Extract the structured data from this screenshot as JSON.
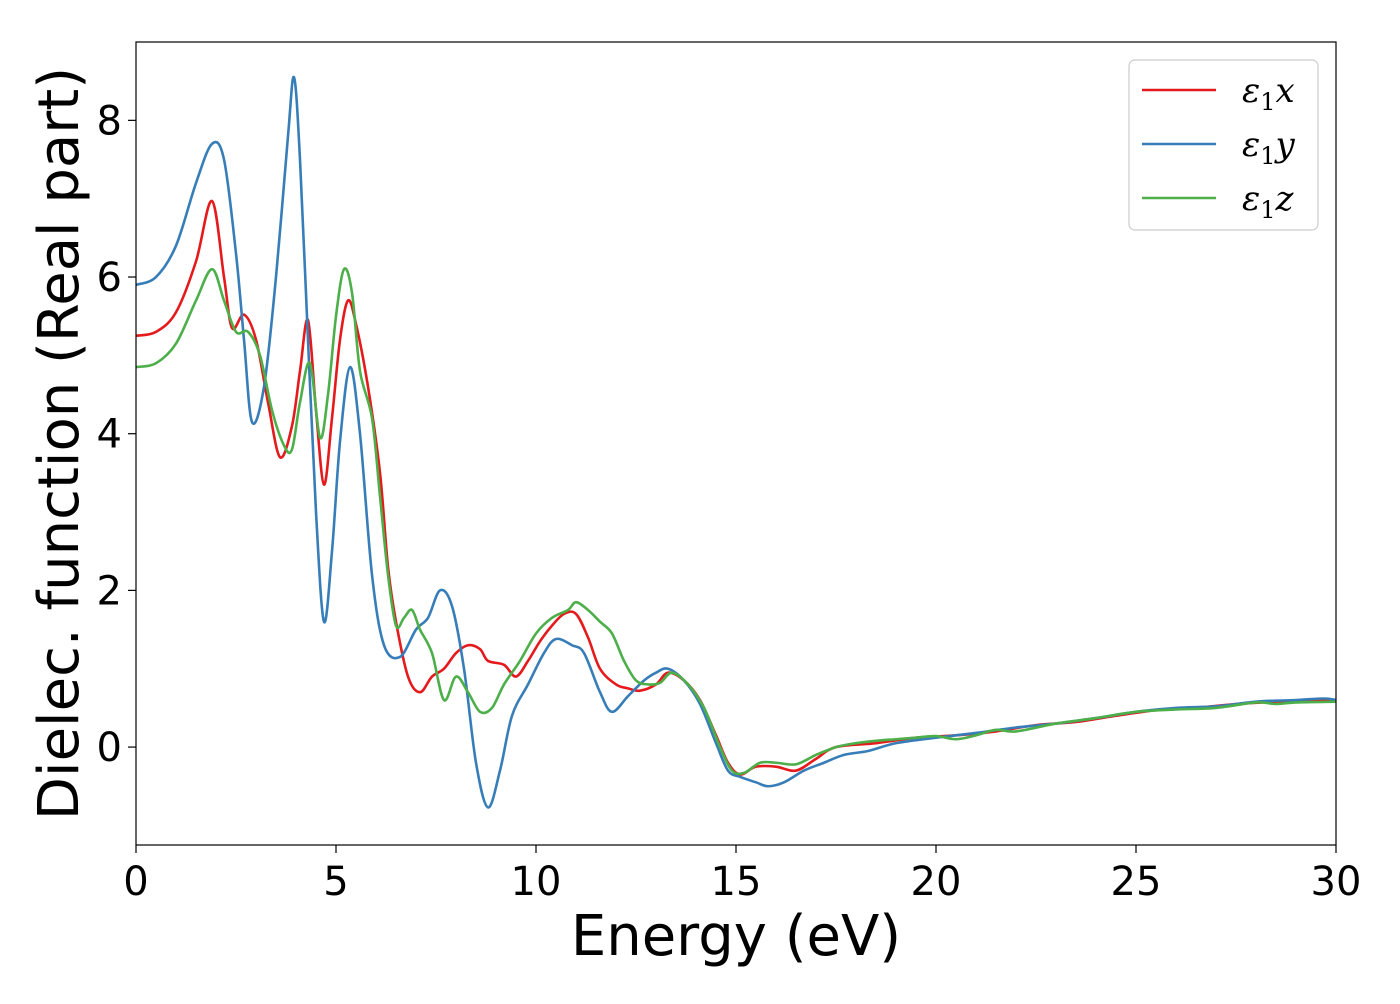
{
  "chart_data": {
    "type": "line",
    "xlabel": "Energy (eV)",
    "ylabel": "Dielec. function (Real part)",
    "xlim": [
      0,
      30
    ],
    "ylim": [
      -1.25,
      9.0
    ],
    "xticks": [
      0,
      5,
      10,
      15,
      20,
      25,
      30
    ],
    "yticks": [
      0,
      2,
      4,
      6,
      8
    ],
    "grid": false,
    "legend_position": "top-right",
    "series": [
      {
        "name": "ε₁x",
        "legend": {
          "base": "ε",
          "sub": "1",
          "suffix": "x"
        },
        "color": "#e41a1c",
        "points": [
          [
            0,
            5.25
          ],
          [
            0.5,
            5.3
          ],
          [
            1.0,
            5.55
          ],
          [
            1.5,
            6.2
          ],
          [
            1.9,
            6.97
          ],
          [
            2.2,
            6.0
          ],
          [
            2.4,
            5.35
          ],
          [
            2.7,
            5.52
          ],
          [
            3.0,
            5.2
          ],
          [
            3.3,
            4.4
          ],
          [
            3.6,
            3.7
          ],
          [
            3.9,
            4.1
          ],
          [
            4.1,
            4.8
          ],
          [
            4.3,
            5.45
          ],
          [
            4.5,
            4.3
          ],
          [
            4.7,
            3.35
          ],
          [
            4.9,
            4.2
          ],
          [
            5.1,
            5.2
          ],
          [
            5.3,
            5.7
          ],
          [
            5.5,
            5.4
          ],
          [
            5.8,
            4.6
          ],
          [
            6.1,
            3.5
          ],
          [
            6.3,
            2.3
          ],
          [
            6.5,
            1.6
          ],
          [
            6.8,
            0.9
          ],
          [
            7.1,
            0.7
          ],
          [
            7.4,
            0.9
          ],
          [
            7.7,
            1.0
          ],
          [
            8.0,
            1.2
          ],
          [
            8.3,
            1.3
          ],
          [
            8.6,
            1.25
          ],
          [
            8.8,
            1.1
          ],
          [
            9.2,
            1.05
          ],
          [
            9.5,
            0.9
          ],
          [
            9.8,
            1.1
          ],
          [
            10.1,
            1.35
          ],
          [
            10.4,
            1.55
          ],
          [
            10.7,
            1.7
          ],
          [
            11.0,
            1.7
          ],
          [
            11.3,
            1.4
          ],
          [
            11.6,
            1.0
          ],
          [
            12.0,
            0.8
          ],
          [
            12.3,
            0.75
          ],
          [
            12.6,
            0.72
          ],
          [
            13.0,
            0.8
          ],
          [
            13.3,
            0.95
          ],
          [
            13.7,
            0.85
          ],
          [
            14.1,
            0.6
          ],
          [
            14.5,
            0.15
          ],
          [
            14.8,
            -0.2
          ],
          [
            15.1,
            -0.35
          ],
          [
            15.5,
            -0.25
          ],
          [
            16.0,
            -0.25
          ],
          [
            16.5,
            -0.3
          ],
          [
            17.0,
            -0.15
          ],
          [
            17.5,
            0.0
          ],
          [
            18.5,
            0.05
          ],
          [
            19.5,
            0.12
          ],
          [
            20.5,
            0.15
          ],
          [
            21.5,
            0.2
          ],
          [
            22.5,
            0.28
          ],
          [
            23.5,
            0.32
          ],
          [
            24.5,
            0.4
          ],
          [
            25.5,
            0.47
          ],
          [
            26.5,
            0.5
          ],
          [
            27.5,
            0.55
          ],
          [
            28.5,
            0.58
          ],
          [
            29.5,
            0.6
          ],
          [
            30,
            0.58
          ]
        ]
      },
      {
        "name": "ε₁y",
        "legend": {
          "base": "ε",
          "sub": "1",
          "suffix": "y"
        },
        "color": "#377eb8",
        "points": [
          [
            0,
            5.9
          ],
          [
            0.5,
            6.0
          ],
          [
            1.0,
            6.4
          ],
          [
            1.5,
            7.2
          ],
          [
            1.9,
            7.7
          ],
          [
            2.2,
            7.5
          ],
          [
            2.5,
            6.3
          ],
          [
            2.7,
            5.2
          ],
          [
            2.9,
            4.15
          ],
          [
            3.2,
            4.6
          ],
          [
            3.5,
            6.0
          ],
          [
            3.8,
            7.8
          ],
          [
            3.95,
            8.55
          ],
          [
            4.1,
            7.5
          ],
          [
            4.3,
            5.2
          ],
          [
            4.5,
            3.0
          ],
          [
            4.7,
            1.6
          ],
          [
            4.9,
            2.5
          ],
          [
            5.1,
            3.9
          ],
          [
            5.35,
            4.85
          ],
          [
            5.6,
            4.0
          ],
          [
            5.9,
            2.2
          ],
          [
            6.2,
            1.3
          ],
          [
            6.6,
            1.15
          ],
          [
            7.0,
            1.5
          ],
          [
            7.3,
            1.65
          ],
          [
            7.6,
            2.0
          ],
          [
            7.9,
            1.8
          ],
          [
            8.2,
            1.0
          ],
          [
            8.5,
            -0.2
          ],
          [
            8.8,
            -0.77
          ],
          [
            9.1,
            -0.3
          ],
          [
            9.4,
            0.4
          ],
          [
            9.8,
            0.8
          ],
          [
            10.2,
            1.2
          ],
          [
            10.5,
            1.38
          ],
          [
            10.9,
            1.3
          ],
          [
            11.2,
            1.2
          ],
          [
            11.6,
            0.7
          ],
          [
            11.9,
            0.45
          ],
          [
            12.3,
            0.65
          ],
          [
            12.7,
            0.85
          ],
          [
            13.0,
            0.95
          ],
          [
            13.3,
            1.0
          ],
          [
            13.7,
            0.85
          ],
          [
            14.1,
            0.55
          ],
          [
            14.5,
            0.05
          ],
          [
            14.8,
            -0.3
          ],
          [
            15.1,
            -0.38
          ],
          [
            15.5,
            -0.45
          ],
          [
            15.8,
            -0.5
          ],
          [
            16.2,
            -0.45
          ],
          [
            16.7,
            -0.3
          ],
          [
            17.2,
            -0.2
          ],
          [
            17.7,
            -0.1
          ],
          [
            18.3,
            -0.05
          ],
          [
            19.0,
            0.05
          ],
          [
            20.0,
            0.12
          ],
          [
            21.0,
            0.18
          ],
          [
            22.0,
            0.25
          ],
          [
            23.0,
            0.3
          ],
          [
            24.0,
            0.37
          ],
          [
            25.0,
            0.45
          ],
          [
            26.0,
            0.5
          ],
          [
            27.0,
            0.52
          ],
          [
            28.0,
            0.58
          ],
          [
            29.0,
            0.6
          ],
          [
            29.7,
            0.62
          ],
          [
            30,
            0.6
          ]
        ]
      },
      {
        "name": "ε₁z",
        "legend": {
          "base": "ε",
          "sub": "1",
          "suffix": "z"
        },
        "color": "#4daf4a",
        "points": [
          [
            0,
            4.85
          ],
          [
            0.5,
            4.9
          ],
          [
            1.0,
            5.15
          ],
          [
            1.5,
            5.7
          ],
          [
            1.9,
            6.1
          ],
          [
            2.2,
            5.7
          ],
          [
            2.5,
            5.3
          ],
          [
            2.8,
            5.3
          ],
          [
            3.1,
            5.0
          ],
          [
            3.4,
            4.3
          ],
          [
            3.7,
            3.85
          ],
          [
            3.9,
            3.8
          ],
          [
            4.1,
            4.4
          ],
          [
            4.35,
            4.9
          ],
          [
            4.6,
            3.95
          ],
          [
            4.8,
            4.5
          ],
          [
            5.0,
            5.5
          ],
          [
            5.2,
            6.1
          ],
          [
            5.4,
            5.8
          ],
          [
            5.6,
            4.8
          ],
          [
            5.9,
            4.2
          ],
          [
            6.1,
            3.2
          ],
          [
            6.3,
            2.2
          ],
          [
            6.5,
            1.55
          ],
          [
            6.7,
            1.65
          ],
          [
            6.9,
            1.75
          ],
          [
            7.1,
            1.5
          ],
          [
            7.4,
            1.2
          ],
          [
            7.7,
            0.6
          ],
          [
            8.0,
            0.9
          ],
          [
            8.3,
            0.7
          ],
          [
            8.6,
            0.45
          ],
          [
            8.9,
            0.5
          ],
          [
            9.2,
            0.8
          ],
          [
            9.6,
            1.1
          ],
          [
            10.0,
            1.45
          ],
          [
            10.4,
            1.65
          ],
          [
            10.8,
            1.75
          ],
          [
            11.0,
            1.85
          ],
          [
            11.3,
            1.75
          ],
          [
            11.6,
            1.6
          ],
          [
            11.9,
            1.45
          ],
          [
            12.2,
            1.1
          ],
          [
            12.5,
            0.85
          ],
          [
            12.8,
            0.8
          ],
          [
            13.1,
            0.82
          ],
          [
            13.4,
            0.95
          ],
          [
            13.8,
            0.8
          ],
          [
            14.2,
            0.5
          ],
          [
            14.6,
            0.0
          ],
          [
            14.9,
            -0.3
          ],
          [
            15.2,
            -0.33
          ],
          [
            15.6,
            -0.2
          ],
          [
            16.0,
            -0.2
          ],
          [
            16.5,
            -0.22
          ],
          [
            17.0,
            -0.1
          ],
          [
            17.5,
            0.0
          ],
          [
            18.0,
            0.05
          ],
          [
            18.5,
            0.08
          ],
          [
            19.0,
            0.1
          ],
          [
            19.5,
            0.12
          ],
          [
            20.0,
            0.14
          ],
          [
            20.5,
            0.1
          ],
          [
            21.0,
            0.15
          ],
          [
            21.5,
            0.22
          ],
          [
            22.0,
            0.2
          ],
          [
            23.0,
            0.3
          ],
          [
            24.0,
            0.37
          ],
          [
            25.0,
            0.45
          ],
          [
            26.0,
            0.48
          ],
          [
            27.0,
            0.5
          ],
          [
            28.0,
            0.57
          ],
          [
            28.5,
            0.55
          ],
          [
            29.0,
            0.57
          ],
          [
            30,
            0.58
          ]
        ]
      }
    ]
  }
}
